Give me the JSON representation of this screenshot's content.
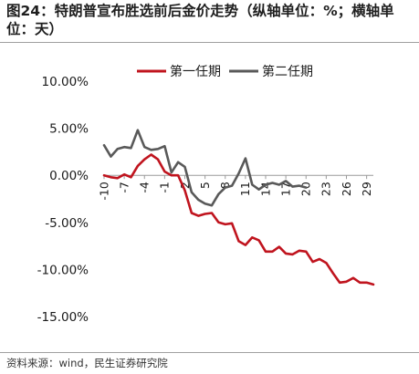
{
  "header": {
    "title": "图24：特朗普宣布胜选前后金价走势（纵轴单位：%；横轴单位：天）"
  },
  "footer": {
    "source": "资料来源：wind，民生证券研究院"
  },
  "chart_data": {
    "type": "line",
    "title": "",
    "xlabel": "",
    "ylabel": "",
    "ylim": [
      -15,
      10
    ],
    "yticks": [
      10,
      5,
      0,
      -5,
      -10,
      -15
    ],
    "ytick_labels": [
      "10.00%",
      "5.00%",
      "0.00%",
      "-5.00%",
      "-10.00%",
      "-15.00%"
    ],
    "xlim": [
      -10,
      30
    ],
    "xticks": [
      -10,
      -7,
      -4,
      -1,
      2,
      5,
      8,
      11,
      14,
      17,
      20,
      23,
      26,
      29
    ],
    "xtick_labels": [
      "-10",
      "-7",
      "-4",
      "-1",
      "2",
      "5",
      "8",
      "11",
      "14",
      "17",
      "20",
      "23",
      "26",
      "29"
    ],
    "legend_position": "top",
    "grid": false,
    "series": [
      {
        "name": "第一任期",
        "color": "#c0141e",
        "x": [
          -10,
          -9,
          -8,
          -7,
          -6,
          -5,
          -4,
          -3,
          -2,
          -1,
          0,
          1,
          2,
          3,
          4,
          5,
          6,
          7,
          8,
          9,
          10,
          11,
          12,
          13,
          14,
          15,
          16,
          17,
          18,
          19,
          20,
          21,
          22,
          23,
          24,
          25,
          26,
          27,
          28,
          29,
          30
        ],
        "values": [
          0.0,
          -0.2,
          -0.3,
          0.1,
          -0.2,
          1.0,
          1.7,
          2.2,
          1.7,
          0.4,
          0.0,
          0.0,
          -1.6,
          -4.0,
          -4.3,
          -4.1,
          -4.0,
          -5.0,
          -5.2,
          -5.1,
          -7.0,
          -7.4,
          -6.6,
          -6.9,
          -8.1,
          -8.1,
          -7.6,
          -8.3,
          -8.4,
          -8.0,
          -8.1,
          -9.2,
          -8.9,
          -9.3,
          -10.4,
          -11.4,
          -11.3,
          -10.9,
          -11.4,
          -11.4,
          -11.6
        ]
      },
      {
        "name": "第二任期",
        "color": "#595959",
        "x": [
          -10,
          -9,
          -8,
          -7,
          -6,
          -5,
          -4,
          -3,
          -2,
          -1,
          0,
          1,
          2,
          3,
          4,
          5,
          6,
          7,
          8,
          9,
          10,
          11,
          12,
          13,
          14,
          15,
          16,
          17,
          18,
          19,
          20
        ],
        "values": [
          3.2,
          2.0,
          2.8,
          3.0,
          2.9,
          4.8,
          3.0,
          2.7,
          2.8,
          3.1,
          0.3,
          1.4,
          0.9,
          -1.8,
          -2.6,
          -3.0,
          -3.2,
          -2.0,
          -1.3,
          -1.1,
          0.2,
          1.8,
          -1.0,
          -1.5,
          -1.0,
          -0.8,
          -1.0,
          -0.6,
          -1.2,
          -1.1,
          -1.3
        ]
      }
    ]
  }
}
